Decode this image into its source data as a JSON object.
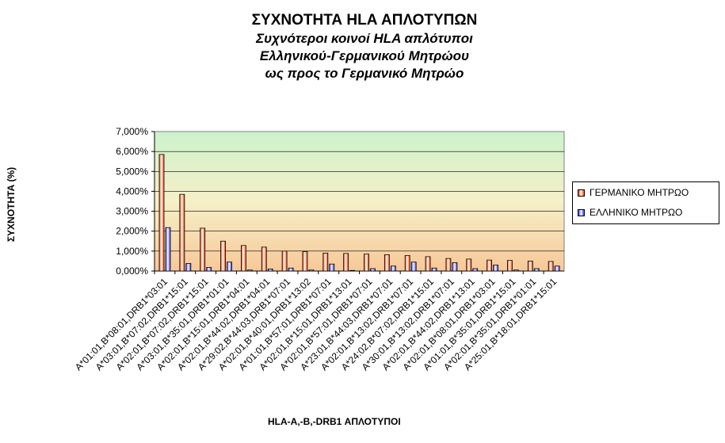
{
  "chart_data": {
    "type": "bar",
    "title": "ΣΥΧΝΟΤΗΤΑ HLA ΑΠΛΟΤΥΠΩΝ",
    "subtitle_lines": [
      "Συχνότεροι κοινοί HLA απλότυποι",
      "Ελληνικού-Γερμανικού Μητρώου",
      "ως προς το Γερμανικό Μητρώο"
    ],
    "xlabel": "HLA-A,-B,-DRB1 ΑΠΛΟΤΥΠΟΙ",
    "ylabel": "ΣΥΧΝΟΤΗΤΑ (%)",
    "ylim": [
      0,
      7
    ],
    "yticks": [
      "0,000%",
      "1,000%",
      "2,000%",
      "3,000%",
      "4,000%",
      "5,000%",
      "6,000%",
      "7,000%"
    ],
    "categories": [
      "A*01:01,B*08:01,DRB1*03:01",
      "A*03:01,B*07:02,DRB1*15:01",
      "A*02:01,B*07:02,DRB1*15:01",
      "A*03:01,B*35:01,DRB1*01:01",
      "A*02:01,B*15:01,DRB1*04:01",
      "A*02:01,B*44:02,DRB1*04:01",
      "A*29:02,B*44:03,DRB1*07:01",
      "A*02:01,B*40:01,DRB1*13:02",
      "A*01:01,B*57:01,DRB1*07:01",
      "A*02:01,B*15:01,DRB1*13:01",
      "A*02:01,B*57:01,DRB1*07:01",
      "A*23:01,B*44:03,DRB1*07:01",
      "A*02:01,B*13:02,DRB1*07:01",
      "A*24:02,B*07:02,DRB1*15:01",
      "A*30:01,B*13:02,DRB1*07:01",
      "A*02:01,B*44:02,DRB1*13:01",
      "A*02:01,B*08:01,DRB1*03:01",
      "A*01:01,B*35:01,DRB1*15:01",
      "A*02:01,B*35:01,DRB1*01:01",
      "A*25:01,B*18:01,DRB1*15:01"
    ],
    "series": [
      {
        "name": "ΓΕΡΜΑΝΙΚΟ ΜΗΤΡΩΟ",
        "color": "#ff4500",
        "values": [
          5.85,
          3.85,
          2.15,
          1.5,
          1.28,
          1.2,
          1.0,
          0.97,
          0.9,
          0.88,
          0.85,
          0.82,
          0.78,
          0.72,
          0.63,
          0.6,
          0.55,
          0.53,
          0.5,
          0.48
        ]
      },
      {
        "name": "ΕΛΛΗΝΙΚΟ ΜΗΤΡΩΟ",
        "color": "#3a3aff",
        "values": [
          2.18,
          0.38,
          0.18,
          0.45,
          0.05,
          0.1,
          0.15,
          0.05,
          0.35,
          0.03,
          0.12,
          0.25,
          0.45,
          0.15,
          0.42,
          0.12,
          0.3,
          0.05,
          0.12,
          0.25
        ]
      }
    ],
    "grid": true,
    "legend_position": "right",
    "background_gradient": [
      "#ccf2cc",
      "#f5f0c8",
      "#f7c898"
    ]
  }
}
